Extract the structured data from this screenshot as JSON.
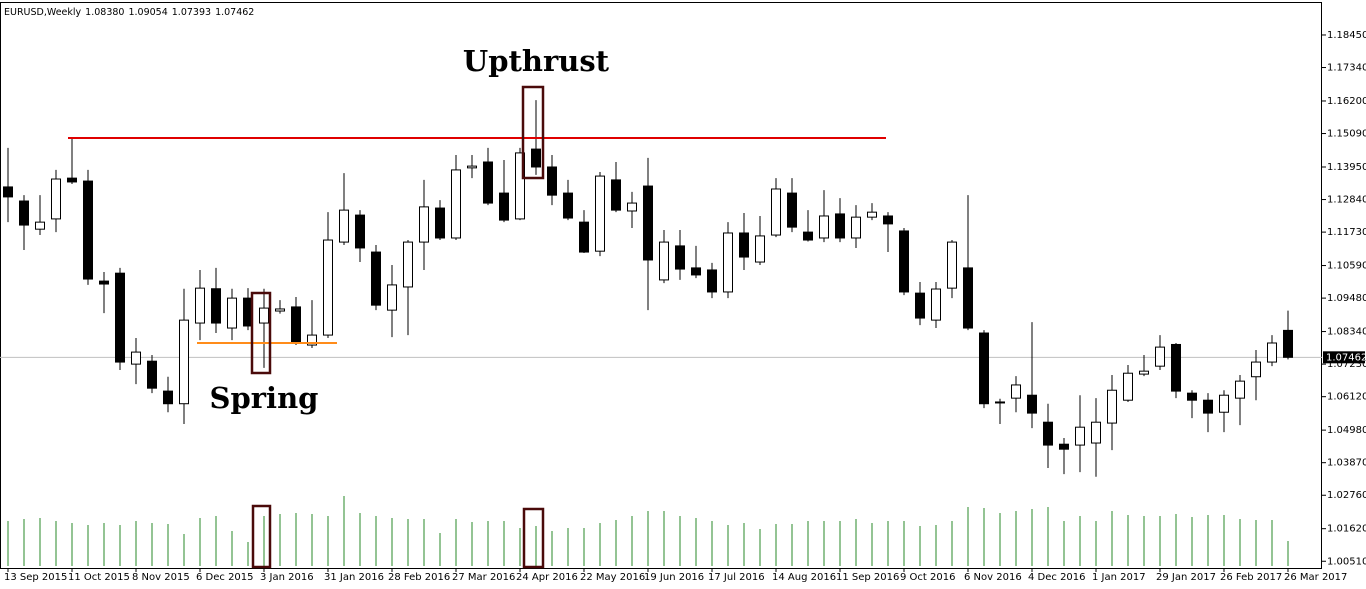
{
  "chart_data": {
    "type": "candlestick",
    "header": {
      "symbol": "EURUSD,Weekly",
      "open": "1.08380",
      "high": "1.09054",
      "low": "1.07393",
      "close": "1.07462"
    },
    "annotations": [
      "Upthrust",
      "Spring"
    ],
    "categories": [
      "13 Sep 2015",
      null,
      null,
      null,
      "11 Oct 2015",
      null,
      null,
      null,
      "8 Nov 2015",
      null,
      null,
      null,
      "6 Dec 2015",
      null,
      null,
      null,
      "3 Jan 2016",
      null,
      null,
      null,
      "31 Jan 2016",
      null,
      null,
      null,
      "28 Feb 2016",
      null,
      null,
      null,
      "27 Mar 2016",
      null,
      null,
      null,
      "24 Apr 2016",
      null,
      null,
      null,
      "22 May 2016",
      null,
      null,
      null,
      "19 Jun 2016",
      null,
      null,
      null,
      "17 Jul 2016",
      null,
      null,
      null,
      "14 Aug 2016",
      null,
      null,
      null,
      "11 Sep 2016",
      null,
      null,
      null,
      "9 Oct 2016",
      null,
      null,
      null,
      "6 Nov 2016",
      null,
      null,
      null,
      "4 Dec 2016",
      null,
      null,
      null,
      "1 Jan 2017",
      null,
      null,
      null,
      "29 Jan 2017",
      null,
      null,
      null,
      "26 Feb 2017",
      null,
      null,
      null,
      "26 Mar 2017"
    ],
    "open": [
      1.1327,
      1.1279,
      1.1183,
      1.1218,
      1.1357,
      1.1347,
      1.1006,
      1.1033,
      1.0723,
      1.0733,
      1.0631,
      1.0588,
      1.0863,
      1.098,
      1.0846,
      1.0948,
      1.0863,
      1.0904,
      1.0918,
      1.0788,
      1.0822,
      1.1139,
      1.1231,
      1.1105,
      1.0907,
      1.0986,
      1.1139,
      1.1255,
      1.1153,
      1.1392,
      1.1412,
      1.1306,
      1.1218,
      1.1456,
      1.1395,
      1.1306,
      1.1207,
      1.1108,
      1.1351,
      1.1245,
      1.133,
      1.101,
      1.1126,
      1.1051,
      1.1044,
      1.0969,
      1.117,
      1.1071,
      1.1163,
      1.1306,
      1.1173,
      1.1153,
      1.1235,
      1.1153,
      1.1224,
      1.1228,
      1.1177,
      1.0965,
      1.0873,
      1.0982,
      1.1051,
      1.0829,
      1.0594,
      1.0607,
      1.0617,
      1.0525,
      1.045,
      1.0447,
      1.0454,
      1.0522,
      1.06,
      1.0689,
      1.0716,
      1.079,
      1.0624,
      1.06,
      1.0559,
      1.0607,
      1.068,
      1.073,
      1.0838
    ],
    "high": [
      1.146,
      1.1299,
      1.1299,
      1.1385,
      1.1494,
      1.1385,
      1.1037,
      1.1051,
      1.0812,
      1.0754,
      1.068,
      1.098,
      1.1044,
      1.1051,
      1.098,
      1.0982,
      1.098,
      1.0941,
      1.0952,
      1.0941,
      1.1241,
      1.1374,
      1.1248,
      1.1129,
      1.1061,
      1.1146,
      1.1351,
      1.1282,
      1.1436,
      1.1436,
      1.146,
      1.1419,
      1.146,
      1.1623,
      1.1436,
      1.1351,
      1.1248,
      1.1378,
      1.1412,
      1.131,
      1.1426,
      1.118,
      1.118,
      1.1126,
      1.1068,
      1.1207,
      1.1238,
      1.1228,
      1.1357,
      1.1357,
      1.1248,
      1.1316,
      1.1289,
      1.1265,
      1.1272,
      1.1241,
      1.1187,
      1.1003,
      1.1003,
      1.1146,
      1.1299,
      1.0839,
      1.0605,
      1.0682,
      1.0866,
      1.0588,
      1.0471,
      1.0617,
      1.0607,
      1.0686,
      1.072,
      1.0754,
      1.0822,
      1.0795,
      1.0634,
      1.0624,
      1.0634,
      1.0686,
      1.0771,
      1.0822,
      1.09054
    ],
    "low": [
      1.1207,
      1.1112,
      1.1163,
      1.1173,
      1.1337,
      1.0993,
      1.0897,
      1.0703,
      1.0655,
      1.0624,
      1.0559,
      1.0519,
      1.0805,
      1.0829,
      1.0805,
      1.0839,
      1.071,
      1.0895,
      1.0788,
      1.0778,
      1.0812,
      1.1129,
      1.1071,
      1.0907,
      1.0815,
      1.0822,
      1.1044,
      1.1146,
      1.1146,
      1.1357,
      1.1265,
      1.1207,
      1.1214,
      1.1368,
      1.1265,
      1.1214,
      1.1102,
      1.1091,
      1.1241,
      1.1187,
      1.0907,
      1.0999,
      1.101,
      1.1016,
      1.0948,
      1.0948,
      1.1044,
      1.1061,
      1.1156,
      1.1173,
      1.1141,
      1.1139,
      1.1139,
      1.1119,
      1.1214,
      1.1105,
      1.0958,
      1.0856,
      1.0846,
      1.0948,
      1.0839,
      1.0573,
      1.0519,
      1.0559,
      1.0505,
      1.0369,
      1.0348,
      1.0355,
      1.0339,
      1.043,
      1.0594,
      1.0682,
      1.0703,
      1.0607,
      1.0539,
      1.0491,
      1.0491,
      1.0515,
      1.06,
      1.0716,
      1.07393
    ],
    "close": [
      1.1293,
      1.1197,
      1.1207,
      1.1354,
      1.1344,
      1.1013,
      1.0996,
      1.073,
      1.0764,
      1.0641,
      1.0588,
      1.0873,
      1.0982,
      1.0863,
      1.0948,
      1.0853,
      1.0914,
      1.0911,
      1.0795,
      1.0822,
      1.1146,
      1.1248,
      1.1119,
      1.0924,
      1.0993,
      1.1139,
      1.1259,
      1.1153,
      1.1385,
      1.1398,
      1.1272,
      1.1214,
      1.1443,
      1.1395,
      1.1299,
      1.1221,
      1.1105,
      1.1364,
      1.1248,
      1.1272,
      1.1078,
      1.1139,
      1.1047,
      1.1027,
      1.0969,
      1.117,
      1.1088,
      1.116,
      1.132,
      1.119,
      1.1146,
      1.1228,
      1.1153,
      1.1224,
      1.1241,
      1.1201,
      1.0969,
      1.088,
      1.0979,
      1.1139,
      1.0846,
      1.0588,
      1.0592,
      1.0652,
      1.0556,
      1.0447,
      1.0433,
      1.0508,
      1.0525,
      1.0634,
      1.0692,
      1.0699,
      1.0781,
      1.0631,
      1.06,
      1.0556,
      1.0617,
      1.0665,
      1.073,
      1.0795,
      1.07462
    ],
    "volume": [
      45,
      47,
      48,
      45,
      43,
      41,
      43,
      41,
      45,
      43,
      42,
      32,
      48,
      50,
      35,
      24,
      50,
      52,
      53,
      52,
      50,
      70,
      53,
      50,
      48,
      47,
      47,
      33,
      47,
      44,
      45,
      45,
      38,
      40,
      35,
      38,
      38,
      43,
      46,
      50,
      55,
      55,
      50,
      48,
      45,
      41,
      43,
      37,
      42,
      42,
      45,
      45,
      45,
      47,
      43,
      45,
      45,
      40,
      41,
      45,
      59,
      58,
      53,
      55,
      57,
      59,
      45,
      50,
      45,
      55,
      51,
      50,
      50,
      52,
      49,
      51,
      51,
      47,
      46,
      46,
      25
    ],
    "up_color": "#ffffff",
    "down_color": "#000000",
    "volume_color": "#2a8a2a",
    "levels": [
      {
        "value": 1.1494,
        "color": "#e00000"
      },
      {
        "value": 1.0795,
        "color": "#ff8c1a"
      }
    ],
    "price_line": {
      "value": 1.07462,
      "label": "1.07462",
      "color": "#c0c0c0"
    },
    "ylim": [
      1.0028,
      1.1954
    ],
    "yticks": [
      {
        "value": 1.1845,
        "label": "1.18450"
      },
      {
        "value": 1.1734,
        "label": "1.17340"
      },
      {
        "value": 1.162,
        "label": "1.16200"
      },
      {
        "value": 1.1509,
        "label": "1.15090"
      },
      {
        "value": 1.1395,
        "label": "1.13950"
      },
      {
        "value": 1.1284,
        "label": "1.12840"
      },
      {
        "value": 1.1173,
        "label": "1.11730"
      },
      {
        "value": 1.1059,
        "label": "1.10590"
      },
      {
        "value": 1.0948,
        "label": "1.09480"
      },
      {
        "value": 1.0834,
        "label": "1.08340"
      },
      {
        "value": 1.0723,
        "label": "1.07230"
      },
      {
        "value": 1.0612,
        "label": "1.06120"
      },
      {
        "value": 1.0498,
        "label": "1.04980"
      },
      {
        "value": 1.0387,
        "label": "1.03870"
      },
      {
        "value": 1.0276,
        "label": "1.02760"
      },
      {
        "value": 1.0162,
        "label": "1.01620"
      },
      {
        "value": 1.0051,
        "label": "1.00510"
      }
    ]
  }
}
